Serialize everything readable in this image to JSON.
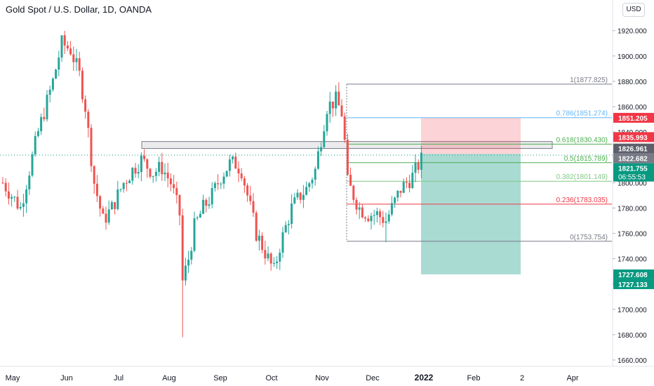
{
  "header": {
    "title": "Gold Spot / U.S. Dollar, 1D, OANDA",
    "currency_button": "USD"
  },
  "chart_data": {
    "type": "candlestick",
    "y_axis": {
      "ticks": [
        "1660.000",
        "1680.000",
        "1700.000",
        "1720.000",
        "1740.000",
        "1760.000",
        "1780.000",
        "1800.000",
        "1820.000",
        "1840.000",
        "1860.000",
        "1880.000",
        "1900.000",
        "1920.000"
      ],
      "ylim": [
        1655,
        1942
      ]
    },
    "x_axis": {
      "ticks": [
        "May",
        "Jun",
        "Jul",
        "Aug",
        "Sep",
        "Oct",
        "Nov",
        "Dec",
        "2022",
        "Feb",
        "2",
        "Apr"
      ],
      "bold_ticks": [
        "2022"
      ]
    },
    "price_path": [
      [
        0,
        1800
      ],
      [
        6,
        1780
      ],
      [
        12,
        1840
      ],
      [
        17,
        1880
      ],
      [
        20,
        1910
      ],
      [
        23,
        1905
      ],
      [
        26,
        1885
      ],
      [
        28,
        1860
      ],
      [
        31,
        1800
      ],
      [
        34,
        1770
      ],
      [
        37,
        1780
      ],
      [
        41,
        1800
      ],
      [
        44,
        1810
      ],
      [
        47,
        1818
      ],
      [
        51,
        1808
      ],
      [
        54,
        1812
      ],
      [
        57,
        1800
      ],
      [
        60,
        1775
      ],
      [
        61,
        1722
      ],
      [
        63,
        1740
      ],
      [
        65,
        1765
      ],
      [
        68,
        1780
      ],
      [
        71,
        1790
      ],
      [
        74,
        1805
      ],
      [
        77,
        1815
      ],
      [
        79,
        1815
      ],
      [
        81,
        1810
      ],
      [
        84,
        1780
      ],
      [
        86,
        1760
      ],
      [
        88,
        1750
      ],
      [
        90,
        1740
      ],
      [
        92,
        1730
      ],
      [
        94,
        1750
      ],
      [
        96,
        1765
      ],
      [
        98,
        1780
      ],
      [
        101,
        1790
      ],
      [
        103,
        1795
      ],
      [
        106,
        1810
      ],
      [
        108,
        1835
      ],
      [
        110,
        1860
      ],
      [
        113,
        1865
      ],
      [
        115,
        1855
      ],
      [
        116,
        1832
      ],
      [
        117,
        1800
      ],
      [
        119,
        1790
      ],
      [
        121,
        1780
      ],
      [
        124,
        1775
      ],
      [
        127,
        1775
      ],
      [
        130,
        1770
      ],
      [
        133,
        1785
      ],
      [
        135,
        1795
      ],
      [
        137,
        1800
      ],
      [
        139,
        1805
      ],
      [
        141,
        1814
      ],
      [
        142,
        1818
      ]
    ],
    "annotations": {
      "fibonacci_levels": [
        {
          "label": "1(1877.825)",
          "value": 1877.825,
          "color": "#787b86"
        },
        {
          "label": "0.786(1851.274)",
          "value": 1851.274,
          "color": "#64b5f6"
        },
        {
          "label": "0.618(1830.430)",
          "value": 1830.43,
          "color": "#4caf50"
        },
        {
          "label": "0.5(1815.789)",
          "value": 1815.789,
          "color": "#4caf50"
        },
        {
          "label": "0.382(1801.149)",
          "value": 1801.149,
          "color": "#81c784"
        },
        {
          "label": "0.236(1783.035)",
          "value": 1783.035,
          "color": "#f23645"
        },
        {
          "label": "0(1753.754)",
          "value": 1753.754,
          "color": "#787b86"
        }
      ],
      "resistance_zone": {
        "top": 1832.5,
        "bottom": 1827.0
      },
      "position": {
        "entry": 1822.682,
        "stop": 1851.205,
        "target": 1727.608
      }
    },
    "price_labels": [
      {
        "text": "1851.205",
        "value": 1851.205,
        "color": "#f23645"
      },
      {
        "text": "1835.993",
        "value": 1835.993,
        "color": "#f23645"
      },
      {
        "text": "1826.961",
        "value": 1826.961,
        "color": "#5d606b"
      },
      {
        "text": "1822.682",
        "value": 1822.682,
        "color": "#787b86"
      },
      {
        "text": "1821.755",
        "value": 1821.755,
        "color": "#089981",
        "sub": "06:55:53"
      },
      {
        "text": "1727.608",
        "value": 1727.608,
        "color": "#089981"
      },
      {
        "text": "1727.133",
        "value": 1727.133,
        "color": "#089981"
      }
    ],
    "colors": {
      "up": "#26a69a",
      "down": "#ef5350"
    }
  }
}
